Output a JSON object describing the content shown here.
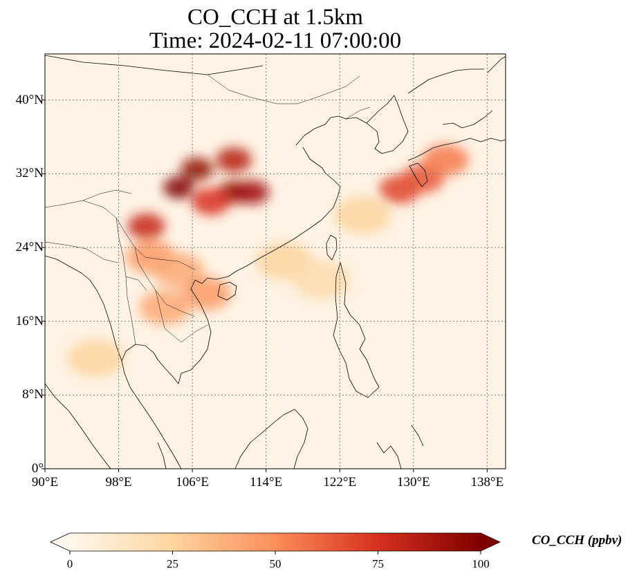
{
  "title": {
    "line1": "CO_CCH at 1.5km",
    "line2": "Time: 2024-02-11 07:00:00"
  },
  "map": {
    "projection": "PlateCarree",
    "lon_range": [
      90,
      140
    ],
    "lat_range": [
      0,
      45
    ],
    "gridlines": "dotted gray",
    "coastlines": true,
    "borders": true
  },
  "axes": {
    "lat_ticks": [
      {
        "value": 0,
        "label": "0°"
      },
      {
        "value": 8,
        "label": "8°N"
      },
      {
        "value": 16,
        "label": "16°N"
      },
      {
        "value": 24,
        "label": "24°N"
      },
      {
        "value": 32,
        "label": "32°N"
      },
      {
        "value": 40,
        "label": "40°N"
      }
    ],
    "lon_ticks": [
      {
        "value": 90,
        "label": "90°E"
      },
      {
        "value": 98,
        "label": "98°E"
      },
      {
        "value": 106,
        "label": "106°E"
      },
      {
        "value": 114,
        "label": "114°E"
      },
      {
        "value": 122,
        "label": "122°E"
      },
      {
        "value": 130,
        "label": "130°E"
      },
      {
        "value": 138,
        "label": "138°E"
      }
    ]
  },
  "colorbar": {
    "title": "CO_CCH (ppbv)",
    "colormap": "OrRd",
    "range": [
      0,
      100
    ],
    "extend": "both",
    "ticks": [
      {
        "value": 0,
        "label": "0"
      },
      {
        "value": 25,
        "label": "25"
      },
      {
        "value": 50,
        "label": "50"
      },
      {
        "value": 75,
        "label": "75"
      },
      {
        "value": 100,
        "label": "100"
      }
    ],
    "colors": [
      "#fff7ec",
      "#fdd49e",
      "#fc8d59",
      "#d7301f",
      "#7f0000"
    ]
  },
  "field": {
    "plumes": [
      {
        "lon": 104.5,
        "lat": 30.5,
        "value": 100
      },
      {
        "lon": 106.5,
        "lat": 32.5,
        "value": 95
      },
      {
        "lon": 110.5,
        "lat": 33.5,
        "value": 85
      },
      {
        "lon": 110.5,
        "lat": 30.0,
        "value": 95
      },
      {
        "lon": 112.5,
        "lat": 30.0,
        "value": 90
      },
      {
        "lon": 108.0,
        "lat": 29.0,
        "value": 75
      },
      {
        "lon": 101.0,
        "lat": 26.3,
        "value": 80
      },
      {
        "lon": 101.5,
        "lat": 23.0,
        "value": 45
      },
      {
        "lon": 104.5,
        "lat": 21.5,
        "value": 40
      },
      {
        "lon": 107.5,
        "lat": 19.0,
        "value": 45
      },
      {
        "lon": 103.0,
        "lat": 17.5,
        "value": 40
      },
      {
        "lon": 128.5,
        "lat": 30.3,
        "value": 70
      },
      {
        "lon": 131.0,
        "lat": 31.5,
        "value": 65
      },
      {
        "lon": 133.5,
        "lat": 33.5,
        "value": 55
      },
      {
        "lon": 124.5,
        "lat": 27.5,
        "value": 25
      },
      {
        "lon": 116.0,
        "lat": 22.5,
        "value": 25
      },
      {
        "lon": 120.0,
        "lat": 20.5,
        "value": 20
      },
      {
        "lon": 95.5,
        "lat": 12.0,
        "value": 25
      }
    ]
  }
}
